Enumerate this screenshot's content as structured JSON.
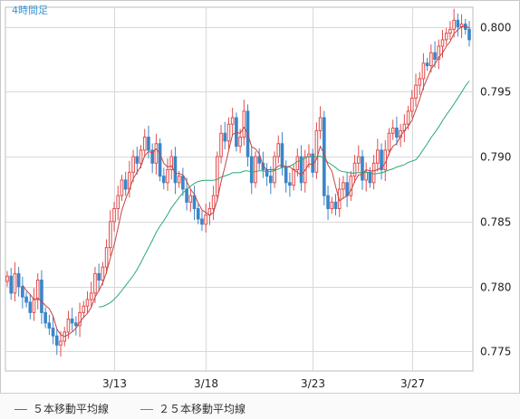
{
  "timeframe_label": "4時間足",
  "colors": {
    "up_candle": "#e34b4b",
    "down_candle": "#3a86c8",
    "ma5": "#c44444",
    "ma25": "#2aa876",
    "grid": "#d8d8d8",
    "plot_bg": "#ffffff"
  },
  "legend": {
    "ma5_label": "５本移動平均線",
    "ma25_label": "２５本移動平均線"
  },
  "chart_data": {
    "type": "candlestick",
    "title": "",
    "xlabel": "",
    "ylabel": "",
    "ylim": [
      0.7735,
      0.8015
    ],
    "y_ticks": [
      "0.775",
      "0.780",
      "0.785",
      "0.790",
      "0.795",
      "0.800"
    ],
    "x_ticks": [
      {
        "label": "3/13",
        "index": 28
      },
      {
        "label": "3/18",
        "index": 52
      },
      {
        "label": "3/23",
        "index": 80
      },
      {
        "label": "3/27",
        "index": 106
      }
    ],
    "grid": true,
    "legend_position": "bottom",
    "series_ohlc_close": [
      0.7808,
      0.7795,
      0.781,
      0.78,
      0.7792,
      0.7788,
      0.778,
      0.779,
      0.7805,
      0.778,
      0.7772,
      0.7768,
      0.7762,
      0.7755,
      0.7758,
      0.7765,
      0.7775,
      0.7772,
      0.777,
      0.778,
      0.7785,
      0.779,
      0.7795,
      0.781,
      0.7805,
      0.7815,
      0.783,
      0.785,
      0.786,
      0.787,
      0.7882,
      0.7875,
      0.7888,
      0.79,
      0.7895,
      0.7905,
      0.7915,
      0.7905,
      0.7895,
      0.791,
      0.7885,
      0.788,
      0.789,
      0.79,
      0.788,
      0.7885,
      0.7875,
      0.7865,
      0.787,
      0.786,
      0.7852,
      0.7848,
      0.7855,
      0.786,
      0.787,
      0.79,
      0.7918,
      0.7912,
      0.7925,
      0.793,
      0.7908,
      0.7915,
      0.7935,
      0.79,
      0.788,
      0.79,
      0.7895,
      0.789,
      0.7885,
      0.788,
      0.79,
      0.791,
      0.7892,
      0.788,
      0.7878,
      0.789,
      0.79,
      0.788,
      0.79,
      0.7902,
      0.7888,
      0.792,
      0.793,
      0.787,
      0.786,
      0.7865,
      0.786,
      0.7875,
      0.788,
      0.787,
      0.7885,
      0.7895,
      0.79,
      0.7882,
      0.7888,
      0.788,
      0.7895,
      0.7905,
      0.789,
      0.7905,
      0.7918,
      0.7922,
      0.7915,
      0.792,
      0.7925,
      0.7935,
      0.7945,
      0.7955,
      0.796,
      0.7972,
      0.797,
      0.798,
      0.7975,
      0.7985,
      0.799,
      0.7995,
      0.7998,
      0.8005,
      0.8,
      0.8002,
      0.7998,
      0.799
    ],
    "series": [
      {
        "name": "５本移動平均線",
        "kind": "moving_average",
        "period": 5
      },
      {
        "name": "２５本移動平均線",
        "kind": "moving_average",
        "period": 25
      }
    ]
  }
}
